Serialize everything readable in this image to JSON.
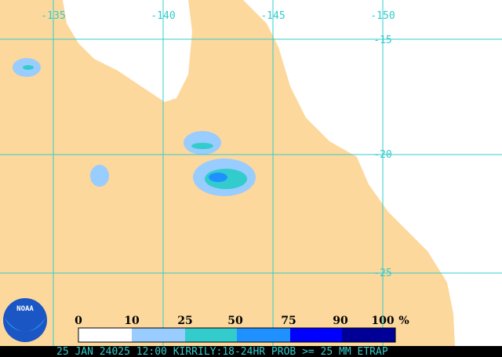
{
  "map": {
    "lon_labels": [
      "-135",
      "-140",
      "-145",
      "-150"
    ],
    "lat_labels": [
      "-15",
      "-20",
      "-25"
    ]
  },
  "legend": {
    "labels": [
      "0",
      "10",
      "25",
      "50",
      "75",
      "90",
      "100"
    ],
    "unit": "%"
  },
  "logo": "NOAA",
  "footer": "25 JAN 24025 12:00 KIRRILY:18-24HR PROB >= 25 MM ETRAP"
}
